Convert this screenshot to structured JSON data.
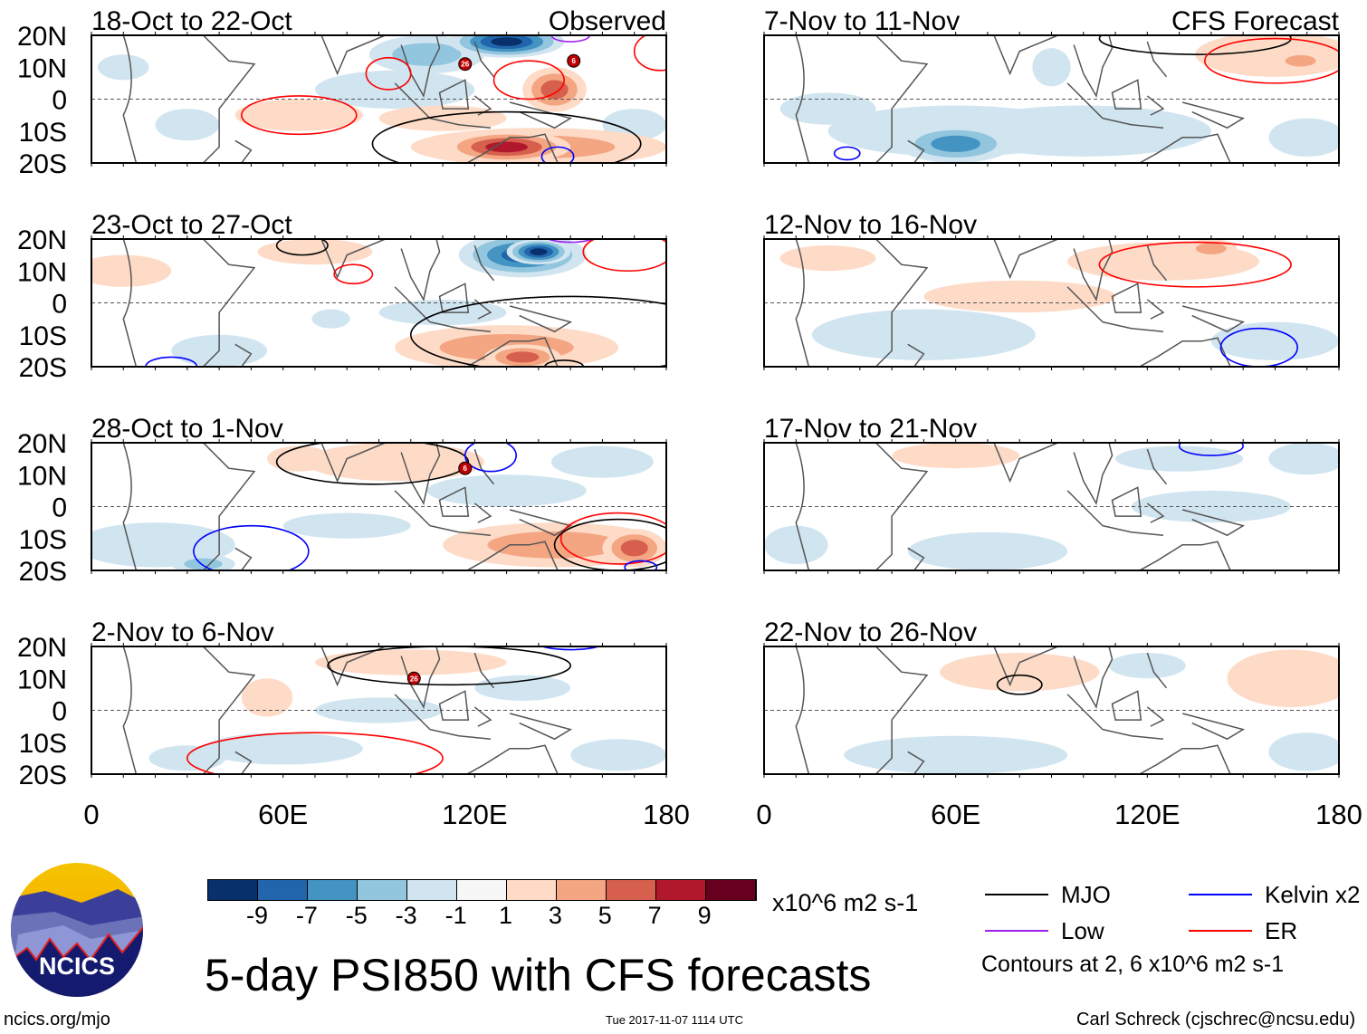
{
  "chart_data": {
    "type": "heatmap",
    "title": "5-day PSI850 with CFS forecasts",
    "xlim": [
      0,
      180
    ],
    "ylim": [
      -20,
      20
    ],
    "lat_ticks": [
      "20N",
      "10N",
      "0",
      "10S",
      "20S"
    ],
    "lon_ticks": [
      "0",
      "60E",
      "120E",
      "180"
    ],
    "panels": [
      {
        "title": "18-Oct to 22-Oct",
        "label": "Observed",
        "anoms": [
          [
            130,
            18,
            18,
            5,
            -10
          ],
          [
            105,
            14,
            18,
            6,
            -5
          ],
          [
            95,
            3,
            25,
            6,
            -2
          ],
          [
            145,
            3,
            10,
            7,
            6
          ],
          [
            140,
            -15,
            40,
            6,
            5
          ],
          [
            130,
            -15,
            20,
            5,
            8
          ],
          [
            65,
            -5,
            20,
            5,
            2
          ],
          [
            110,
            -6,
            20,
            4,
            2
          ],
          [
            30,
            -8,
            10,
            5,
            -2
          ],
          [
            170,
            -8,
            10,
            5,
            -2
          ],
          [
            10,
            10,
            8,
            4,
            -2
          ]
        ],
        "contours": [
          [
            "ER",
            65,
            -5,
            18,
            6
          ],
          [
            "ER",
            93,
            8,
            7,
            5
          ],
          [
            "ER",
            137,
            6,
            11,
            6
          ],
          [
            "MJO",
            130,
            -14,
            42,
            10
          ],
          [
            "Kelvin",
            146,
            -18,
            5,
            3
          ],
          [
            "Low",
            150,
            20,
            6,
            2
          ],
          [
            "ER",
            178,
            15,
            8,
            6
          ]
        ],
        "storms": [
          {
            "label": "26",
            "lon": 117,
            "lat": 11
          },
          {
            "label": "6",
            "lon": 151,
            "lat": 12
          }
        ]
      },
      {
        "title": "23-Oct to 27-Oct",
        "label": "",
        "anoms": [
          [
            135,
            15,
            20,
            7,
            -8
          ],
          [
            140,
            16,
            10,
            4,
            -10
          ],
          [
            70,
            16,
            18,
            4,
            2
          ],
          [
            10,
            10,
            15,
            5,
            2
          ],
          [
            130,
            -14,
            35,
            7,
            4
          ],
          [
            135,
            -17,
            12,
            4,
            6
          ],
          [
            75,
            -5,
            6,
            3,
            -3
          ],
          [
            110,
            -3,
            20,
            4,
            -2
          ],
          [
            40,
            -15,
            15,
            5,
            -2
          ]
        ],
        "contours": [
          [
            "MJO",
            66,
            18,
            8,
            3
          ],
          [
            "ER",
            82,
            9,
            6,
            3
          ],
          [
            "MJO",
            150,
            -10,
            50,
            12
          ],
          [
            "ER",
            168,
            16,
            14,
            6
          ],
          [
            "Low",
            150,
            21,
            8,
            2
          ],
          [
            "Kelvin",
            25,
            -20,
            8,
            3
          ],
          [
            "MJO",
            148,
            -20,
            6,
            2
          ]
        ],
        "storms": []
      },
      {
        "title": "28-Oct to 1-Nov",
        "label": "",
        "anoms": [
          [
            95,
            14,
            28,
            6,
            3
          ],
          [
            65,
            15,
            10,
            4,
            2
          ],
          [
            145,
            -12,
            35,
            7,
            4
          ],
          [
            170,
            -13,
            10,
            6,
            7
          ],
          [
            20,
            -12,
            25,
            7,
            -3
          ],
          [
            35,
            -18,
            10,
            3,
            -5
          ],
          [
            160,
            14,
            16,
            5,
            -3
          ],
          [
            130,
            5,
            25,
            5,
            -1.5
          ],
          [
            80,
            -6,
            20,
            4,
            -1.5
          ]
        ],
        "contours": [
          [
            "MJO",
            88,
            14,
            30,
            7
          ],
          [
            "Kelvin",
            125,
            16,
            8,
            5
          ],
          [
            "ER",
            165,
            -10,
            18,
            8
          ],
          [
            "MJO",
            165,
            -12,
            20,
            8
          ],
          [
            "Kelvin",
            50,
            -14,
            18,
            8
          ],
          [
            "Kelvin",
            172,
            -19,
            5,
            2
          ]
        ],
        "storms": [
          {
            "label": "6",
            "lon": 117,
            "lat": 12
          }
        ]
      },
      {
        "title": "2-Nov to 6-Nov",
        "label": "",
        "anoms": [
          [
            55,
            4,
            8,
            6,
            2
          ],
          [
            100,
            15,
            30,
            4,
            2
          ],
          [
            135,
            7,
            15,
            4,
            -3
          ],
          [
            90,
            0,
            20,
            4,
            -2
          ],
          [
            60,
            -12,
            25,
            5,
            -1.5
          ],
          [
            30,
            -15,
            12,
            4,
            -2
          ],
          [
            165,
            -14,
            15,
            5,
            -2
          ]
        ],
        "contours": [
          [
            "MJO",
            112,
            14,
            38,
            6
          ],
          [
            "Kelvin",
            150,
            21,
            10,
            2
          ],
          [
            "ER",
            70,
            -15,
            40,
            8
          ]
        ],
        "storms": [
          {
            "label": "26",
            "lon": 101,
            "lat": 10
          }
        ]
      },
      {
        "title": "7-Nov to 11-Nov",
        "label": "CFS Forecast",
        "anoms": [
          [
            160,
            14,
            25,
            7,
            3
          ],
          [
            168,
            12,
            8,
            3,
            5
          ],
          [
            60,
            -14,
            18,
            6,
            -6
          ],
          [
            60,
            -10,
            40,
            8,
            -2
          ],
          [
            100,
            -10,
            40,
            8,
            -1.5
          ],
          [
            90,
            10,
            6,
            6,
            -3
          ],
          [
            20,
            -3,
            15,
            5,
            -2
          ],
          [
            170,
            -12,
            12,
            6,
            -2
          ]
        ],
        "contours": [
          [
            "MJO",
            135,
            19,
            30,
            5
          ],
          [
            "ER",
            160,
            12,
            22,
            7
          ],
          [
            "Kelvin",
            26,
            -17,
            4,
            2
          ]
        ],
        "storms": []
      },
      {
        "title": "12-Nov to 16-Nov",
        "label": "",
        "anoms": [
          [
            125,
            13,
            30,
            6,
            2
          ],
          [
            140,
            17,
            8,
            3,
            4
          ],
          [
            80,
            2,
            30,
            5,
            2
          ],
          [
            20,
            14,
            15,
            4,
            2
          ],
          [
            50,
            -10,
            35,
            8,
            -1.5
          ],
          [
            160,
            -12,
            20,
            6,
            -1.5
          ]
        ],
        "contours": [
          [
            "ER",
            135,
            12,
            30,
            7
          ],
          [
            "Kelvin",
            155,
            -14,
            12,
            6
          ]
        ],
        "storms": []
      },
      {
        "title": "17-Nov to 21-Nov",
        "label": "",
        "anoms": [
          [
            60,
            16,
            20,
            4,
            2
          ],
          [
            170,
            15,
            12,
            5,
            -3
          ],
          [
            130,
            15,
            20,
            4,
            -1.5
          ],
          [
            70,
            -14,
            25,
            6,
            -3
          ],
          [
            140,
            0,
            25,
            5,
            -1.5
          ],
          [
            10,
            -12,
            10,
            6,
            -2
          ]
        ],
        "contours": [
          [
            "Kelvin",
            140,
            19,
            10,
            3
          ]
        ],
        "storms": []
      },
      {
        "title": "22-Nov to 26-Nov",
        "label": "",
        "anoms": [
          [
            80,
            12,
            25,
            6,
            2
          ],
          [
            165,
            10,
            20,
            9,
            2
          ],
          [
            120,
            14,
            12,
            4,
            -2
          ],
          [
            60,
            -14,
            35,
            6,
            -2
          ],
          [
            170,
            -13,
            12,
            6,
            -3
          ]
        ],
        "contours": [
          [
            "MJO",
            80,
            8,
            7,
            3
          ]
        ],
        "storms": []
      }
    ]
  },
  "colorbar": {
    "labels": [
      "-9",
      "-7",
      "-5",
      "-3",
      "-1",
      "1",
      "3",
      "5",
      "7",
      "9"
    ],
    "colors": [
      "#08306b",
      "#2166ac",
      "#4393c3",
      "#92c5de",
      "#d1e5f0",
      "#f7f7f7",
      "#fddbc7",
      "#f4a582",
      "#d6604d",
      "#b2182b",
      "#67001f"
    ],
    "units": "x10^6 m2 s-1"
  },
  "legend": {
    "items": [
      {
        "name": "MJO",
        "color": "#000000"
      },
      {
        "name": "Kelvin x2",
        "color": "#0000ff"
      },
      {
        "name": "Low",
        "color": "#a020f0"
      },
      {
        "name": "ER",
        "color": "#ff0000"
      }
    ],
    "note": "Contours at 2, 6 x10^6 m2 s-1"
  },
  "logo": {
    "text": "NCICS"
  },
  "footer": {
    "url": "ncics.org/mjo",
    "timestamp": "Tue 2017-11-07 1114 UTC",
    "author": "Carl Schreck (cjschrec@ncsu.edu)"
  }
}
